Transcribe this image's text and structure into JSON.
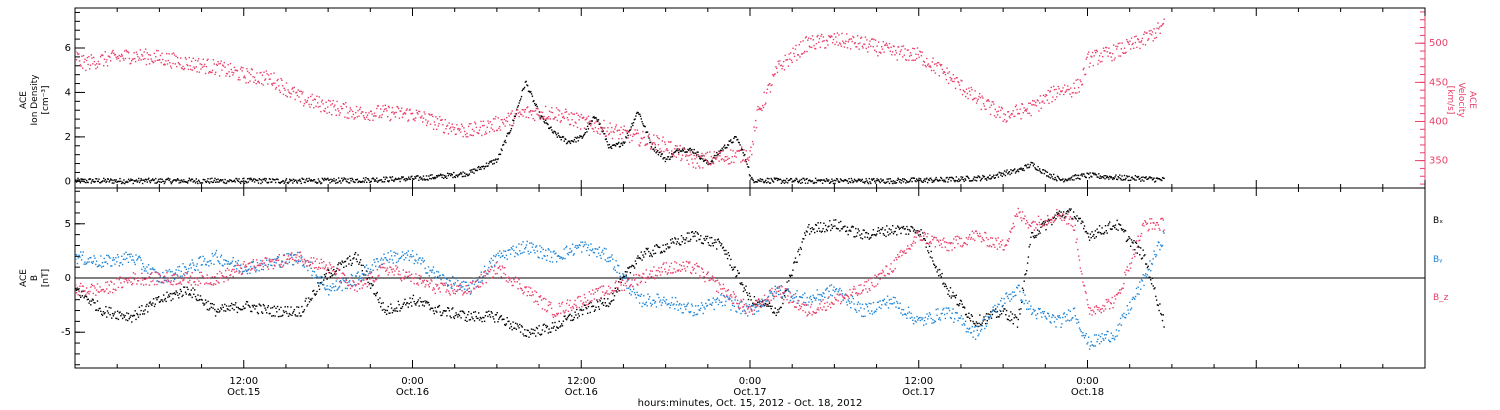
{
  "colors": {
    "black": "#000000",
    "magenta": "#e8406a",
    "blue": "#1f86d8"
  },
  "x_axis": {
    "title": "hours:minutes, Oct. 15, 2012 - Oct. 18, 2012",
    "range_hours": [
      0,
      96
    ],
    "ticks": [
      {
        "hour": 12,
        "time": "12:00",
        "date": "Oct.15"
      },
      {
        "hour": 24,
        "time": "0:00",
        "date": "Oct.16"
      },
      {
        "hour": 36,
        "time": "12:00",
        "date": "Oct.16"
      },
      {
        "hour": 48,
        "time": "0:00",
        "date": "Oct.17"
      },
      {
        "hour": 60,
        "time": "12:00",
        "date": "Oct.17"
      },
      {
        "hour": 72,
        "time": "0:00",
        "date": "Oct.18"
      }
    ]
  },
  "chart_data": [
    {
      "type": "scatter",
      "panel": "top",
      "ylabel_lines": [
        "ACE",
        "Ion Density",
        "[cm⁻³]"
      ],
      "ylim": [
        -0.3,
        7.8
      ],
      "yticks": [
        0,
        2,
        4,
        6
      ],
      "ytick_labels": [
        "0",
        "2",
        "4",
        "6"
      ],
      "right_axis": {
        "ylabel_lines": [
          "ACE",
          "Velocity",
          "[km/s]"
        ],
        "ylim": [
          315,
          545
        ],
        "yticks": [
          350,
          400,
          450,
          500
        ],
        "ytick_labels": [
          "350",
          "400",
          "450",
          "500"
        ]
      },
      "series": [
        {
          "name": "Ion Density",
          "axis": "left",
          "color": "#000000",
          "x": [
            0,
            3,
            6,
            9,
            12,
            15,
            18,
            21,
            24,
            26,
            28,
            30,
            31,
            32,
            33,
            34,
            35,
            36,
            37,
            38,
            39,
            40,
            41,
            42,
            43,
            44,
            45,
            46,
            47,
            47.8,
            48,
            50,
            54,
            58,
            62,
            65,
            66,
            67,
            68,
            69,
            70,
            72,
            74,
            76,
            77.4
          ],
          "y": [
            0.05,
            0.05,
            0.05,
            0.05,
            0.05,
            0.05,
            0.05,
            0.1,
            0.15,
            0.25,
            0.4,
            1.0,
            2.5,
            4.5,
            3.0,
            2.2,
            1.8,
            2.0,
            3.0,
            1.5,
            1.8,
            3.2,
            1.6,
            1.0,
            1.5,
            1.4,
            0.8,
            1.5,
            2.0,
            0.8,
            0.1,
            0.05,
            0.05,
            0.05,
            0.1,
            0.2,
            0.4,
            0.5,
            0.8,
            0.4,
            0.1,
            0.3,
            0.2,
            0.15,
            0.1
          ]
        },
        {
          "name": "Velocity",
          "axis": "right",
          "color": "#e8406a",
          "x": [
            0,
            0.5,
            2,
            4,
            6,
            8,
            10,
            12,
            14,
            16,
            18,
            20,
            22,
            24,
            26,
            28,
            30,
            32,
            34,
            36,
            38,
            40,
            42,
            44,
            46,
            48,
            48.5,
            50,
            52,
            54,
            56,
            58,
            60,
            62,
            64,
            66,
            68,
            70,
            71,
            71.5,
            72,
            74,
            76,
            77.4
          ],
          "y": [
            485,
            475,
            480,
            485,
            482,
            475,
            470,
            460,
            455,
            430,
            420,
            412,
            412,
            410,
            397,
            388,
            398,
            412,
            412,
            400,
            390,
            380,
            370,
            350,
            355,
            360,
            410,
            470,
            500,
            505,
            500,
            490,
            485,
            460,
            430,
            408,
            418,
            442,
            442,
            450,
            480,
            490,
            505,
            523
          ]
        }
      ]
    },
    {
      "type": "scatter",
      "panel": "bottom",
      "ylabel_lines": [
        "ACE",
        "B",
        "[nT]"
      ],
      "ylim": [
        -8.3,
        8.3
      ],
      "yticks": [
        -5,
        0,
        5
      ],
      "ytick_labels": [
        "-5",
        "0",
        "5"
      ],
      "zero_line": true,
      "series": [
        {
          "name": "Bₓ",
          "color": "#000000",
          "x": [
            0,
            2,
            4,
            6,
            8,
            10,
            12,
            14,
            16,
            18,
            20,
            22,
            24,
            26,
            28,
            30,
            32,
            34,
            36,
            38,
            40,
            42,
            44,
            46,
            48,
            50,
            52,
            54,
            56,
            58,
            60,
            62,
            64,
            66,
            67,
            68,
            70,
            71,
            72,
            74,
            76,
            77.4
          ],
          "y": [
            -1,
            -3,
            -3.5,
            -2,
            -1,
            -3,
            -2.5,
            -3,
            -3,
            0.5,
            2,
            -3,
            -2,
            -3,
            -3.5,
            -3.5,
            -5,
            -4.5,
            -3,
            -2,
            2,
            3,
            4,
            3,
            -2,
            -3,
            4.5,
            5,
            4,
            4.5,
            4.5,
            -1,
            -4,
            -3,
            -4,
            4,
            6,
            6,
            4,
            5,
            2,
            -4
          ]
        },
        {
          "name": "Bᵧ",
          "color": "#1f86d8",
          "x": [
            0,
            2,
            4,
            6,
            8,
            10,
            12,
            14,
            16,
            18,
            20,
            22,
            24,
            26,
            28,
            30,
            32,
            34,
            36,
            38,
            40,
            42,
            44,
            46,
            48,
            50,
            52,
            54,
            56,
            58,
            60,
            62,
            64,
            66,
            67,
            68,
            70,
            71,
            72,
            74,
            76,
            77.4
          ],
          "y": [
            2,
            1.5,
            2,
            0,
            1,
            2,
            1,
            1.5,
            2,
            -1,
            0,
            2,
            2,
            0,
            -1,
            2,
            3,
            2,
            3,
            2,
            -2,
            -2,
            -3,
            -2,
            -3,
            -1,
            -2,
            -1,
            -3,
            -2,
            -4,
            -3,
            -5,
            -2,
            -1,
            -3,
            -4,
            -3,
            -6,
            -5,
            0,
            4
          ]
        },
        {
          "name": "B_z",
          "color": "#e8406a",
          "x": [
            0,
            2,
            4,
            6,
            8,
            10,
            12,
            14,
            16,
            18,
            20,
            22,
            24,
            26,
            28,
            30,
            32,
            34,
            36,
            38,
            40,
            42,
            44,
            46,
            48,
            50,
            52,
            54,
            56,
            58,
            60,
            62,
            64,
            66,
            67,
            68,
            70,
            71,
            72,
            74,
            76,
            77.4
          ],
          "y": [
            -1,
            -1,
            0,
            0,
            0,
            0,
            1,
            1.5,
            2,
            1,
            -1,
            1,
            0,
            -1,
            -1,
            1,
            -1,
            -3,
            -2,
            -1,
            0,
            1,
            1,
            -1,
            -3,
            -1,
            -3,
            -2,
            -1,
            1,
            4,
            3,
            4,
            3,
            6,
            5,
            6,
            5,
            -3,
            -2,
            5,
            5
          ]
        }
      ]
    }
  ]
}
